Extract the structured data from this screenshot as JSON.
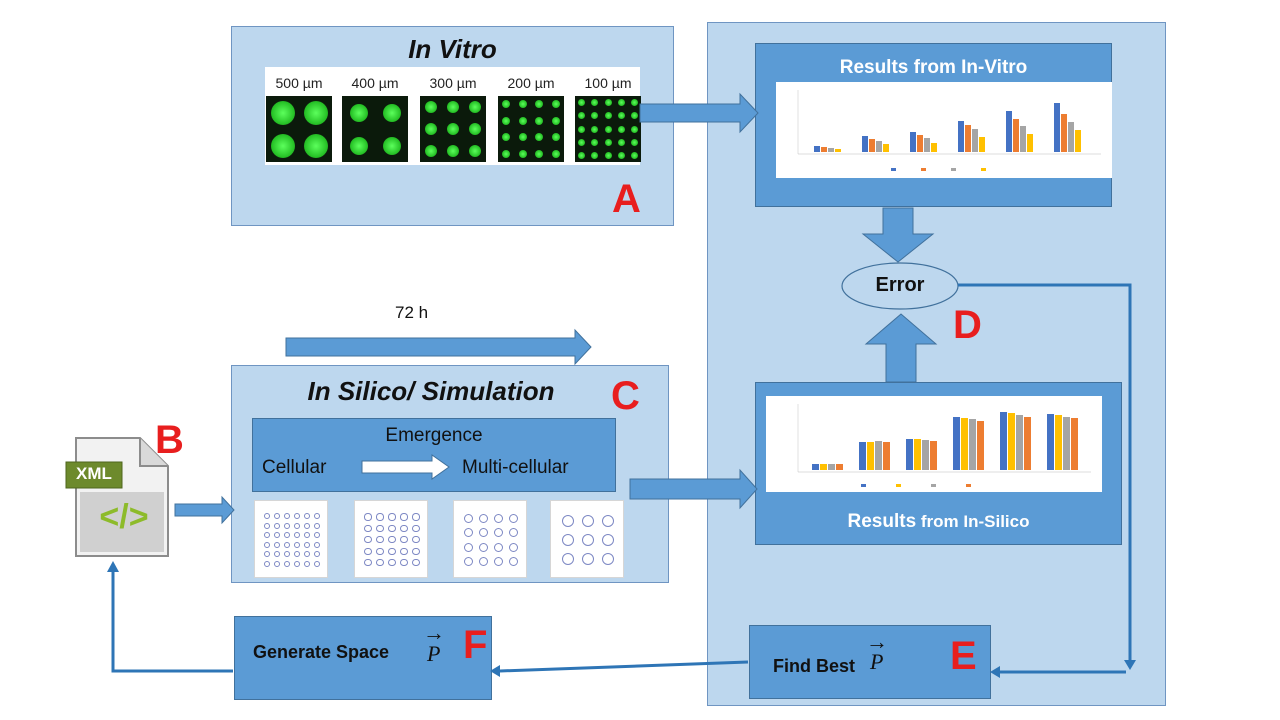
{
  "panel_a": {
    "title": "In Vitro",
    "letter": "A",
    "patch_labels": [
      "500 µm",
      "400 µm",
      "300 µm",
      "200 µm",
      "100 µm"
    ]
  },
  "results_vitro": {
    "title": "Results from In-Vitro"
  },
  "error": {
    "label": "Error"
  },
  "letters": {
    "b": "B",
    "c": "C",
    "d": "D",
    "e": "E",
    "f": "F"
  },
  "time_arrow": {
    "label": "72 h"
  },
  "panel_c": {
    "title": "In Silico/ Simulation",
    "emergence": "Emergence",
    "cellular": "Cellular",
    "multicellular": "Multi-cellular"
  },
  "results_silico": {
    "title_bold": "Results",
    "title_rest": " from In-Silico"
  },
  "xml_icon": {
    "label": "XML",
    "symbol": "</>"
  },
  "find_best": {
    "label": "Find Best",
    "vector": "P",
    "arrow": "→"
  },
  "generate": {
    "label": "Generate Space",
    "vector": "P",
    "arrow": "→"
  },
  "colors": {
    "light_fill": "#bdd7ee",
    "dark_fill": "#5b9bd5",
    "accent_red": "#e81e1e",
    "series": [
      "#4472c4",
      "#ed7d31",
      "#a5a5a5",
      "#ffc000"
    ]
  }
}
